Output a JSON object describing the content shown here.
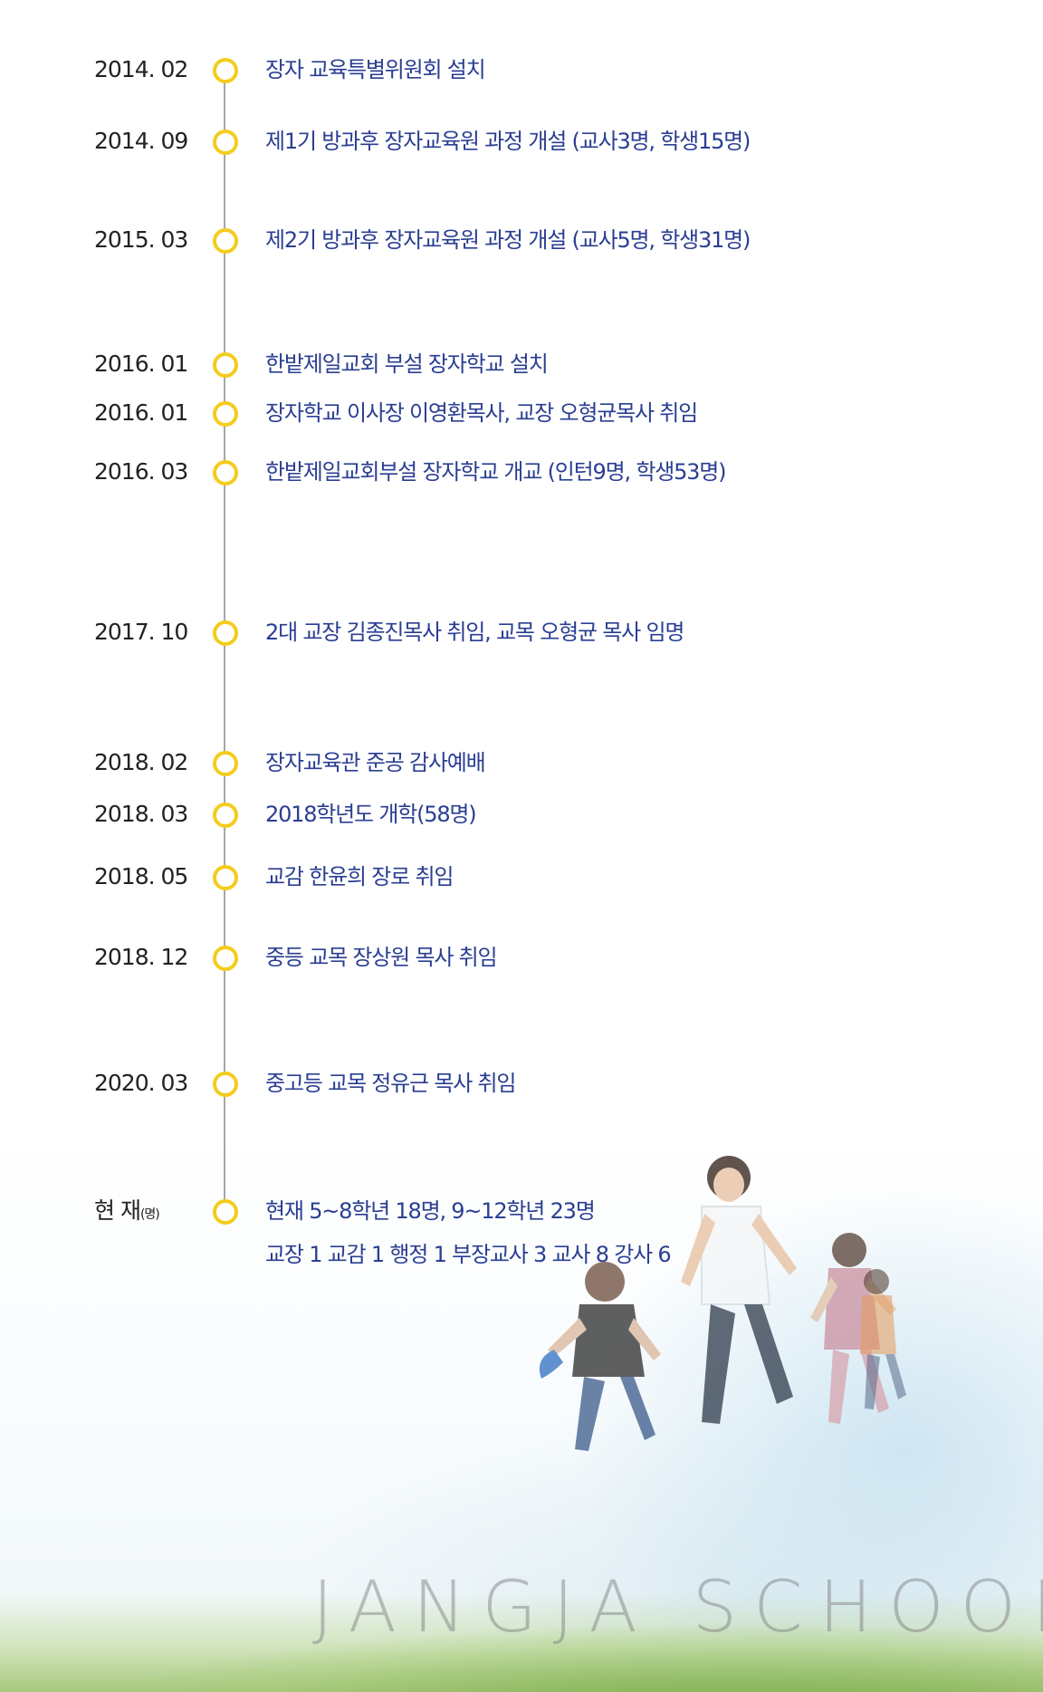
{
  "timeline": [
    {
      "date": "2014. 02",
      "text": "장자 교육특별위원회 설치"
    },
    {
      "date": "2014. 09",
      "text": "제1기 방과후 장자교육원 과정 개설 (교사3명, 학생15명)"
    },
    {
      "date": "2015. 03",
      "text": "제2기 방과후 장자교육원 과정 개설 (교사5명, 학생31명)"
    },
    {
      "date": "2016. 01",
      "text": "한밭제일교회 부설 장자학교 설치"
    },
    {
      "date": "2016. 01",
      "text": "장자학교 이사장 이영환목사, 교장 오형균목사 취임"
    },
    {
      "date": "2016. 03",
      "text": "한밭제일교회부설 장자학교 개교 (인턴9명, 학생53명)"
    },
    {
      "date": "2017. 10",
      "text": "2대 교장 김종진목사 취임, 교목 오형균 목사 임명"
    },
    {
      "date": "2018. 02",
      "text": "장자교육관 준공 감사예배"
    },
    {
      "date": "2018. 03",
      "text": "2018학년도 개학(58명)"
    },
    {
      "date": "2018. 05",
      "text": "교감 한윤희 장로 취임"
    },
    {
      "date": "2018. 12",
      "text": "중등 교목 장상원 목사 취임"
    },
    {
      "date": "2020. 03",
      "text": "중고등 교목 정유근 목사 취임"
    }
  ],
  "current": {
    "label": "현 재",
    "unit": "(명)",
    "line1": "현재 5~8학년 18명, 9~12학년 23명",
    "line2": "교장 1  교감 1  행정 1  부장교사 3  교사 8  강사 6"
  },
  "watermark": "JANGJA SCHOOL",
  "colors": {
    "dot": "#f4cc1c",
    "text": "#2a3e92",
    "date": "#222222",
    "line": "#a7a7a7"
  }
}
